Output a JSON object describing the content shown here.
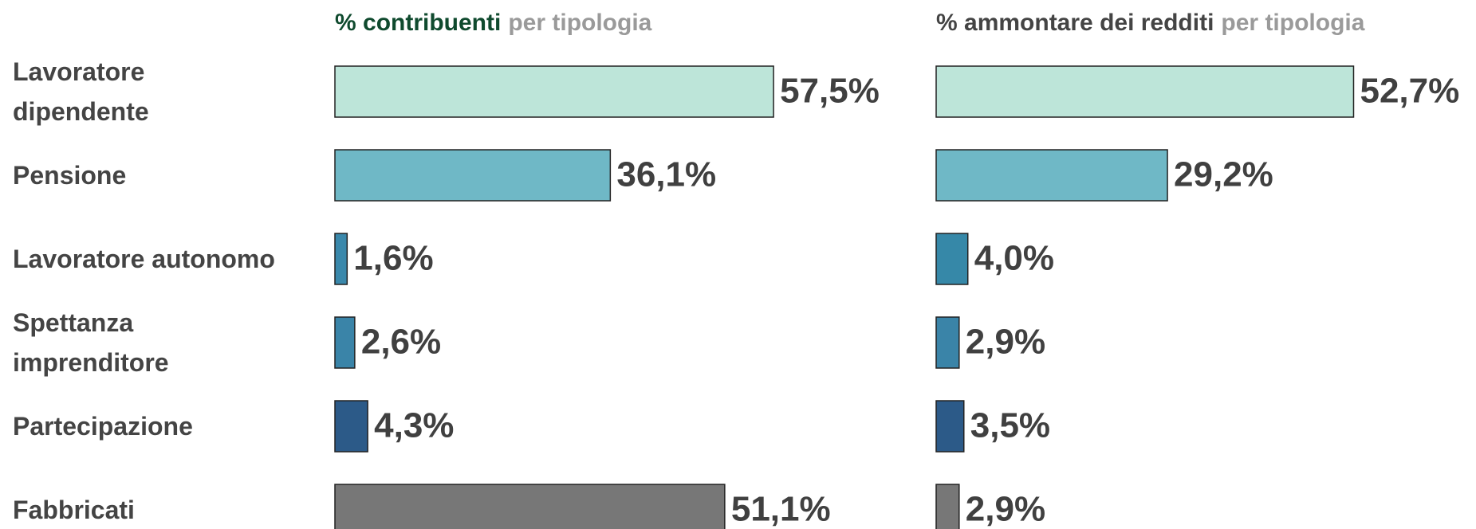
{
  "categories": [
    "Lavoratore\ndipendente",
    "Pensione",
    "Lavoratore autonomo",
    "Spettanza\nimprenditore",
    "Partecipazione",
    "Fabbricati"
  ],
  "chart_data": [
    {
      "type": "bar",
      "orientation": "horizontal",
      "title": {
        "main": "% contribuenti",
        "rest": "per tipologia",
        "main_color": "#0f4a2e",
        "rest_color": "#9a9a9a"
      },
      "values": [
        57.5,
        36.1,
        1.6,
        2.6,
        4.3,
        51.1
      ],
      "value_labels": [
        "57,5%",
        "36,1%",
        "1,6%",
        "2,6%",
        "4,3%",
        "51,1%"
      ],
      "colors": [
        "#bde5d9",
        "#6fb8c6",
        "#3a88ab",
        "#3a84a8",
        "#2c5a88",
        "#777777"
      ],
      "xlim": [
        0,
        60
      ]
    },
    {
      "type": "bar",
      "orientation": "horizontal",
      "title": {
        "main": "% ammontare dei redditi",
        "rest": "per tipologia",
        "main_color": "#444444",
        "rest_color": "#9a9a9a"
      },
      "values": [
        52.7,
        29.2,
        4.0,
        2.9,
        3.5,
        2.9
      ],
      "value_labels": [
        "52,7%",
        "29,2%",
        "4,0%",
        "2,9%",
        "3,5%",
        "2,9%"
      ],
      "colors": [
        "#bde5d9",
        "#6fb8c6",
        "#3688a8",
        "#3a84a8",
        "#2c5a88",
        "#777777"
      ],
      "xlim": [
        0,
        60
      ]
    }
  ]
}
